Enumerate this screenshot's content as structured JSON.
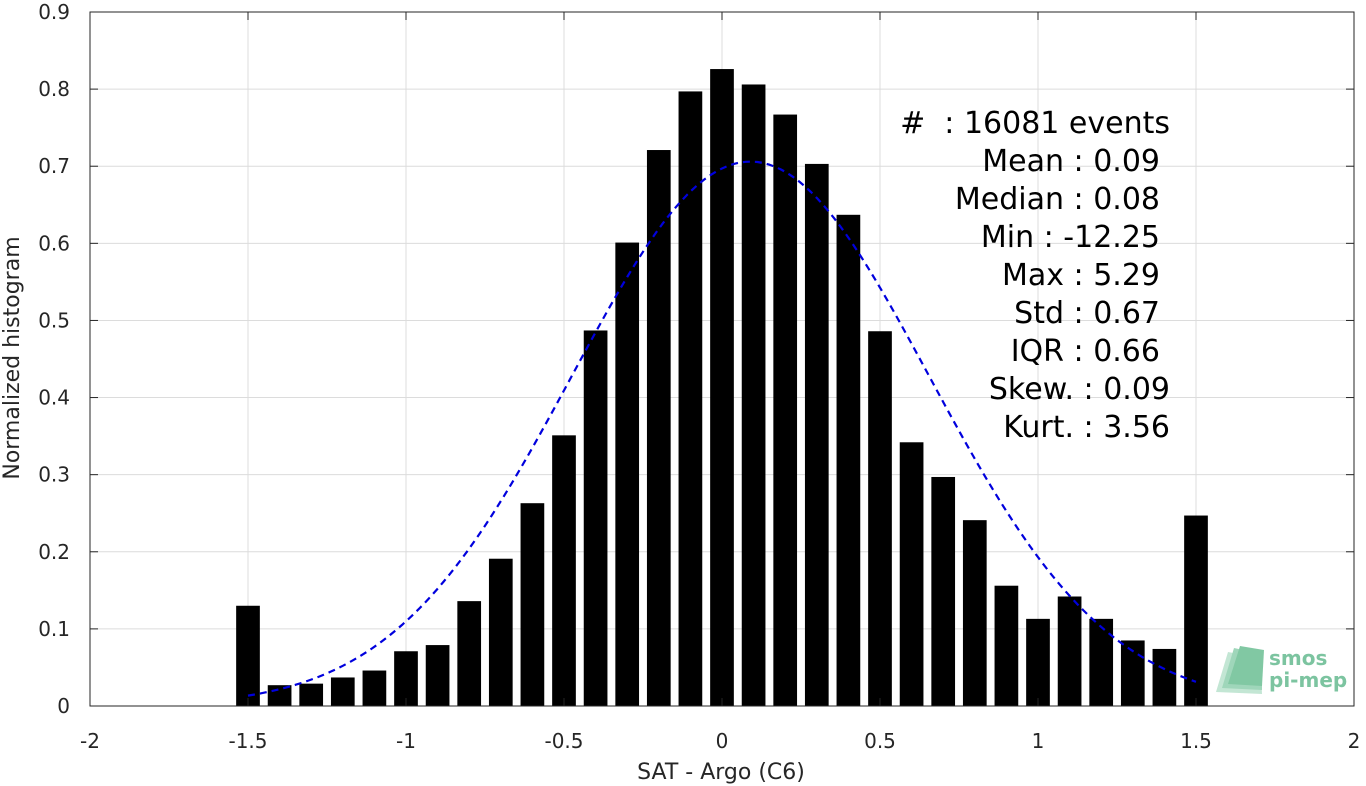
{
  "chart_data": {
    "type": "bar",
    "xlabel": "SAT - Argo (C6)",
    "ylabel": "Normalized histogram",
    "xlim": [
      -2,
      2
    ],
    "ylim": [
      0,
      0.9
    ],
    "xticks": [
      -2,
      -1.5,
      -1,
      -0.5,
      0,
      0.5,
      1,
      1.5,
      2
    ],
    "xtick_labels": [
      "-2",
      "-1.5",
      "-1",
      "-0.5",
      "0",
      "0.5",
      "1",
      "1.5",
      "2"
    ],
    "yticks": [
      0,
      0.1,
      0.2,
      0.3,
      0.4,
      0.5,
      0.6,
      0.7,
      0.8,
      0.9
    ],
    "ytick_labels": [
      "0",
      "0.1",
      "0.2",
      "0.3",
      "0.4",
      "0.5",
      "0.6",
      "0.7",
      "0.8",
      "0.9"
    ],
    "grid": true,
    "bar_color": "#000000",
    "bin_centers": [
      -1.5,
      -1.4,
      -1.3,
      -1.2,
      -1.1,
      -1.0,
      -0.9,
      -0.8,
      -0.7,
      -0.6,
      -0.5,
      -0.4,
      -0.3,
      -0.2,
      -0.1,
      0.0,
      0.1,
      0.2,
      0.3,
      0.4,
      0.5,
      0.6,
      0.7,
      0.8,
      0.9,
      1.0,
      1.1,
      1.2,
      1.3,
      1.4,
      1.5
    ],
    "values": [
      0.13,
      0.027,
      0.029,
      0.037,
      0.046,
      0.071,
      0.079,
      0.136,
      0.191,
      0.263,
      0.351,
      0.487,
      0.601,
      0.721,
      0.797,
      0.826,
      0.806,
      0.767,
      0.703,
      0.637,
      0.486,
      0.342,
      0.297,
      0.241,
      0.156,
      0.113,
      0.142,
      0.113,
      0.085,
      0.074,
      0.247
    ],
    "fit": {
      "type": "gaussian",
      "style": "dashed",
      "color": "#0000dd",
      "mean": 0.09,
      "std": 0.565,
      "peak": 0.706,
      "x_range": [
        -1.5,
        1.5
      ]
    },
    "stats_lines": [
      "#  : 16081 events",
      "Mean : 0.09",
      "Median : 0.08",
      "Min : -12.25",
      "Max : 5.29",
      "Std : 0.67",
      "IQR : 0.66",
      "Skew. : 0.09",
      "Kurt. : 3.56"
    ]
  },
  "logo": {
    "line1": "smos",
    "line2": "pi-mep",
    "color": "#7cc4a0"
  }
}
